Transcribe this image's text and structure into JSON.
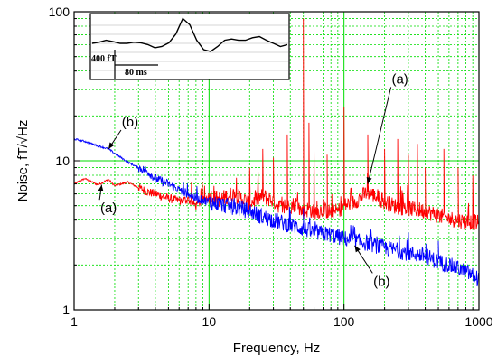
{
  "chart_data": {
    "type": "line",
    "xlabel": "Frequency, Hz",
    "ylabel": "Noise,  fT/√Hz",
    "xscale": "log",
    "yscale": "log",
    "xlim": [
      1,
      1000
    ],
    "ylim": [
      1,
      100
    ],
    "x_ticks": [
      1,
      10,
      100,
      1000
    ],
    "x_tick_labels": [
      "1",
      "10",
      "100",
      "1000"
    ],
    "y_ticks": [
      1,
      10,
      100
    ],
    "y_tick_labels": [
      "1",
      "10",
      "100"
    ],
    "grid": true,
    "grid_color": "#00dd00",
    "series": [
      {
        "name": "(a)",
        "color": "#ff0000",
        "x": [
          1,
          1.2,
          1.5,
          1.8,
          2,
          2.5,
          3,
          3.5,
          4,
          5,
          6,
          7,
          8,
          10,
          12,
          15,
          18,
          20,
          25,
          30,
          35,
          40,
          45,
          48,
          52,
          55,
          60,
          70,
          80,
          90,
          100,
          120,
          150,
          200,
          250,
          300,
          400,
          500,
          600,
          700,
          800,
          900,
          1000
        ],
        "y": [
          7.0,
          7.6,
          6.9,
          7.5,
          6.8,
          7.2,
          6.6,
          6.2,
          6.0,
          5.6,
          5.4,
          5.5,
          5.0,
          5.8,
          5.5,
          6.0,
          5.5,
          5.2,
          5.8,
          5.4,
          4.8,
          5.0,
          5.2,
          4.6,
          4.6,
          4.8,
          4.5,
          4.7,
          4.5,
          4.6,
          5.0,
          5.3,
          6.2,
          5.3,
          4.9,
          4.8,
          4.6,
          4.3,
          4.1,
          4.0,
          3.9,
          3.9,
          3.8
        ],
        "peaks": [
          [
            20,
            9.0
          ],
          [
            25,
            12.0
          ],
          [
            30,
            10.5
          ],
          [
            38,
            15.0
          ],
          [
            50,
            90.0
          ],
          [
            55,
            18.0
          ],
          [
            60,
            13.0
          ],
          [
            75,
            11.0
          ],
          [
            100,
            23.0
          ],
          [
            150,
            15.0
          ],
          [
            200,
            12.0
          ],
          [
            250,
            14.0
          ],
          [
            300,
            11.0
          ],
          [
            350,
            13.0
          ],
          [
            400,
            9.0
          ],
          [
            550,
            12.0
          ],
          [
            700,
            9.0
          ],
          [
            900,
            8.0
          ]
        ]
      },
      {
        "name": "(b)",
        "color": "#0000ff",
        "x": [
          1,
          1.2,
          1.5,
          1.8,
          2,
          2.5,
          3,
          3.5,
          4,
          5,
          6,
          7,
          8,
          10,
          12,
          15,
          20,
          25,
          30,
          40,
          50,
          60,
          80,
          100,
          120,
          150,
          200,
          250,
          300,
          400,
          500,
          600,
          700,
          800,
          900,
          1000
        ],
        "y": [
          14.0,
          13.5,
          12.6,
          12.0,
          11.2,
          9.8,
          9.0,
          8.5,
          7.6,
          7.0,
          6.4,
          6.0,
          5.6,
          5.3,
          5.1,
          4.9,
          4.6,
          4.2,
          4.0,
          3.7,
          3.5,
          3.3,
          3.2,
          3.0,
          2.9,
          2.8,
          2.6,
          2.5,
          2.4,
          2.3,
          2.1,
          2.0,
          1.9,
          1.8,
          1.7,
          1.6
        ],
        "peaks": [
          [
            40,
            4.6
          ],
          [
            50,
            4.8
          ],
          [
            120,
            3.6
          ],
          [
            300,
            3.3
          ],
          [
            500,
            2.9
          ]
        ]
      }
    ],
    "annotations": [
      {
        "text": "(b)",
        "x": 2.6,
        "y": 17.0,
        "arrow_to": [
          1.8,
          12.0
        ]
      },
      {
        "text": "(a)",
        "x": 1.8,
        "y": 4.5,
        "arrow_to": [
          1.6,
          6.9
        ]
      },
      {
        "text": "(a)",
        "x": 260,
        "y": 33.0,
        "arrow_to": [
          150,
          7.0
        ]
      },
      {
        "text": "(b)",
        "x": 190,
        "y": 1.45,
        "arrow_to": [
          120,
          2.7
        ]
      }
    ],
    "inset": {
      "labels": [
        "400 fT",
        "80 ms"
      ],
      "waveform": [
        0.55,
        0.57,
        0.6,
        0.58,
        0.55,
        0.55,
        0.57,
        0.56,
        0.53,
        0.48,
        0.5,
        0.56,
        0.7,
        0.95,
        0.85,
        0.6,
        0.45,
        0.42,
        0.5,
        0.6,
        0.62,
        0.6,
        0.6,
        0.64,
        0.66,
        0.6,
        0.55,
        0.5,
        0.53
      ]
    }
  }
}
